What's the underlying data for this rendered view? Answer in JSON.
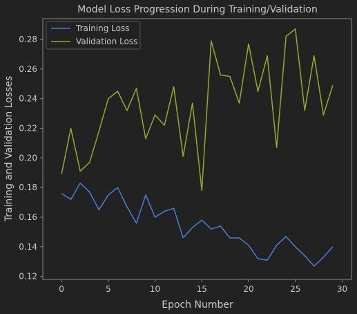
{
  "chart_data": {
    "type": "line",
    "title": "Model Loss Progression During Training/Validation",
    "xlabel": "Epoch Number",
    "ylabel": "Training and Validation Losses",
    "xlim": [
      -2,
      31
    ],
    "ylim": [
      0.118,
      0.294
    ],
    "xticks": [
      0,
      5,
      10,
      15,
      20,
      25,
      30
    ],
    "yticks": [
      0.12,
      0.14,
      0.16,
      0.18,
      0.2,
      0.22,
      0.24,
      0.26,
      0.28
    ],
    "grid": false,
    "legend_position": "top-left",
    "x": [
      0,
      1,
      2,
      3,
      4,
      5,
      6,
      7,
      8,
      9,
      10,
      11,
      12,
      13,
      14,
      15,
      16,
      17,
      18,
      19,
      20,
      21,
      22,
      23,
      24,
      25,
      26,
      27,
      28,
      29
    ],
    "series": [
      {
        "name": "Training Loss",
        "color": "#4a7fd4",
        "values": [
          0.176,
          0.172,
          0.183,
          0.177,
          0.165,
          0.175,
          0.18,
          0.167,
          0.156,
          0.175,
          0.16,
          0.164,
          0.166,
          0.146,
          0.153,
          0.158,
          0.152,
          0.154,
          0.146,
          0.146,
          0.141,
          0.132,
          0.131,
          0.141,
          0.147,
          0.14,
          0.134,
          0.127,
          0.133,
          0.14
        ]
      },
      {
        "name": "Validation Loss",
        "color": "#8fae2e",
        "values": [
          0.189,
          0.22,
          0.191,
          0.197,
          0.218,
          0.24,
          0.245,
          0.232,
          0.247,
          0.213,
          0.229,
          0.222,
          0.248,
          0.201,
          0.237,
          0.178,
          0.279,
          0.256,
          0.255,
          0.237,
          0.277,
          0.245,
          0.269,
          0.207,
          0.282,
          0.287,
          0.232,
          0.269,
          0.229,
          0.249
        ]
      }
    ]
  }
}
